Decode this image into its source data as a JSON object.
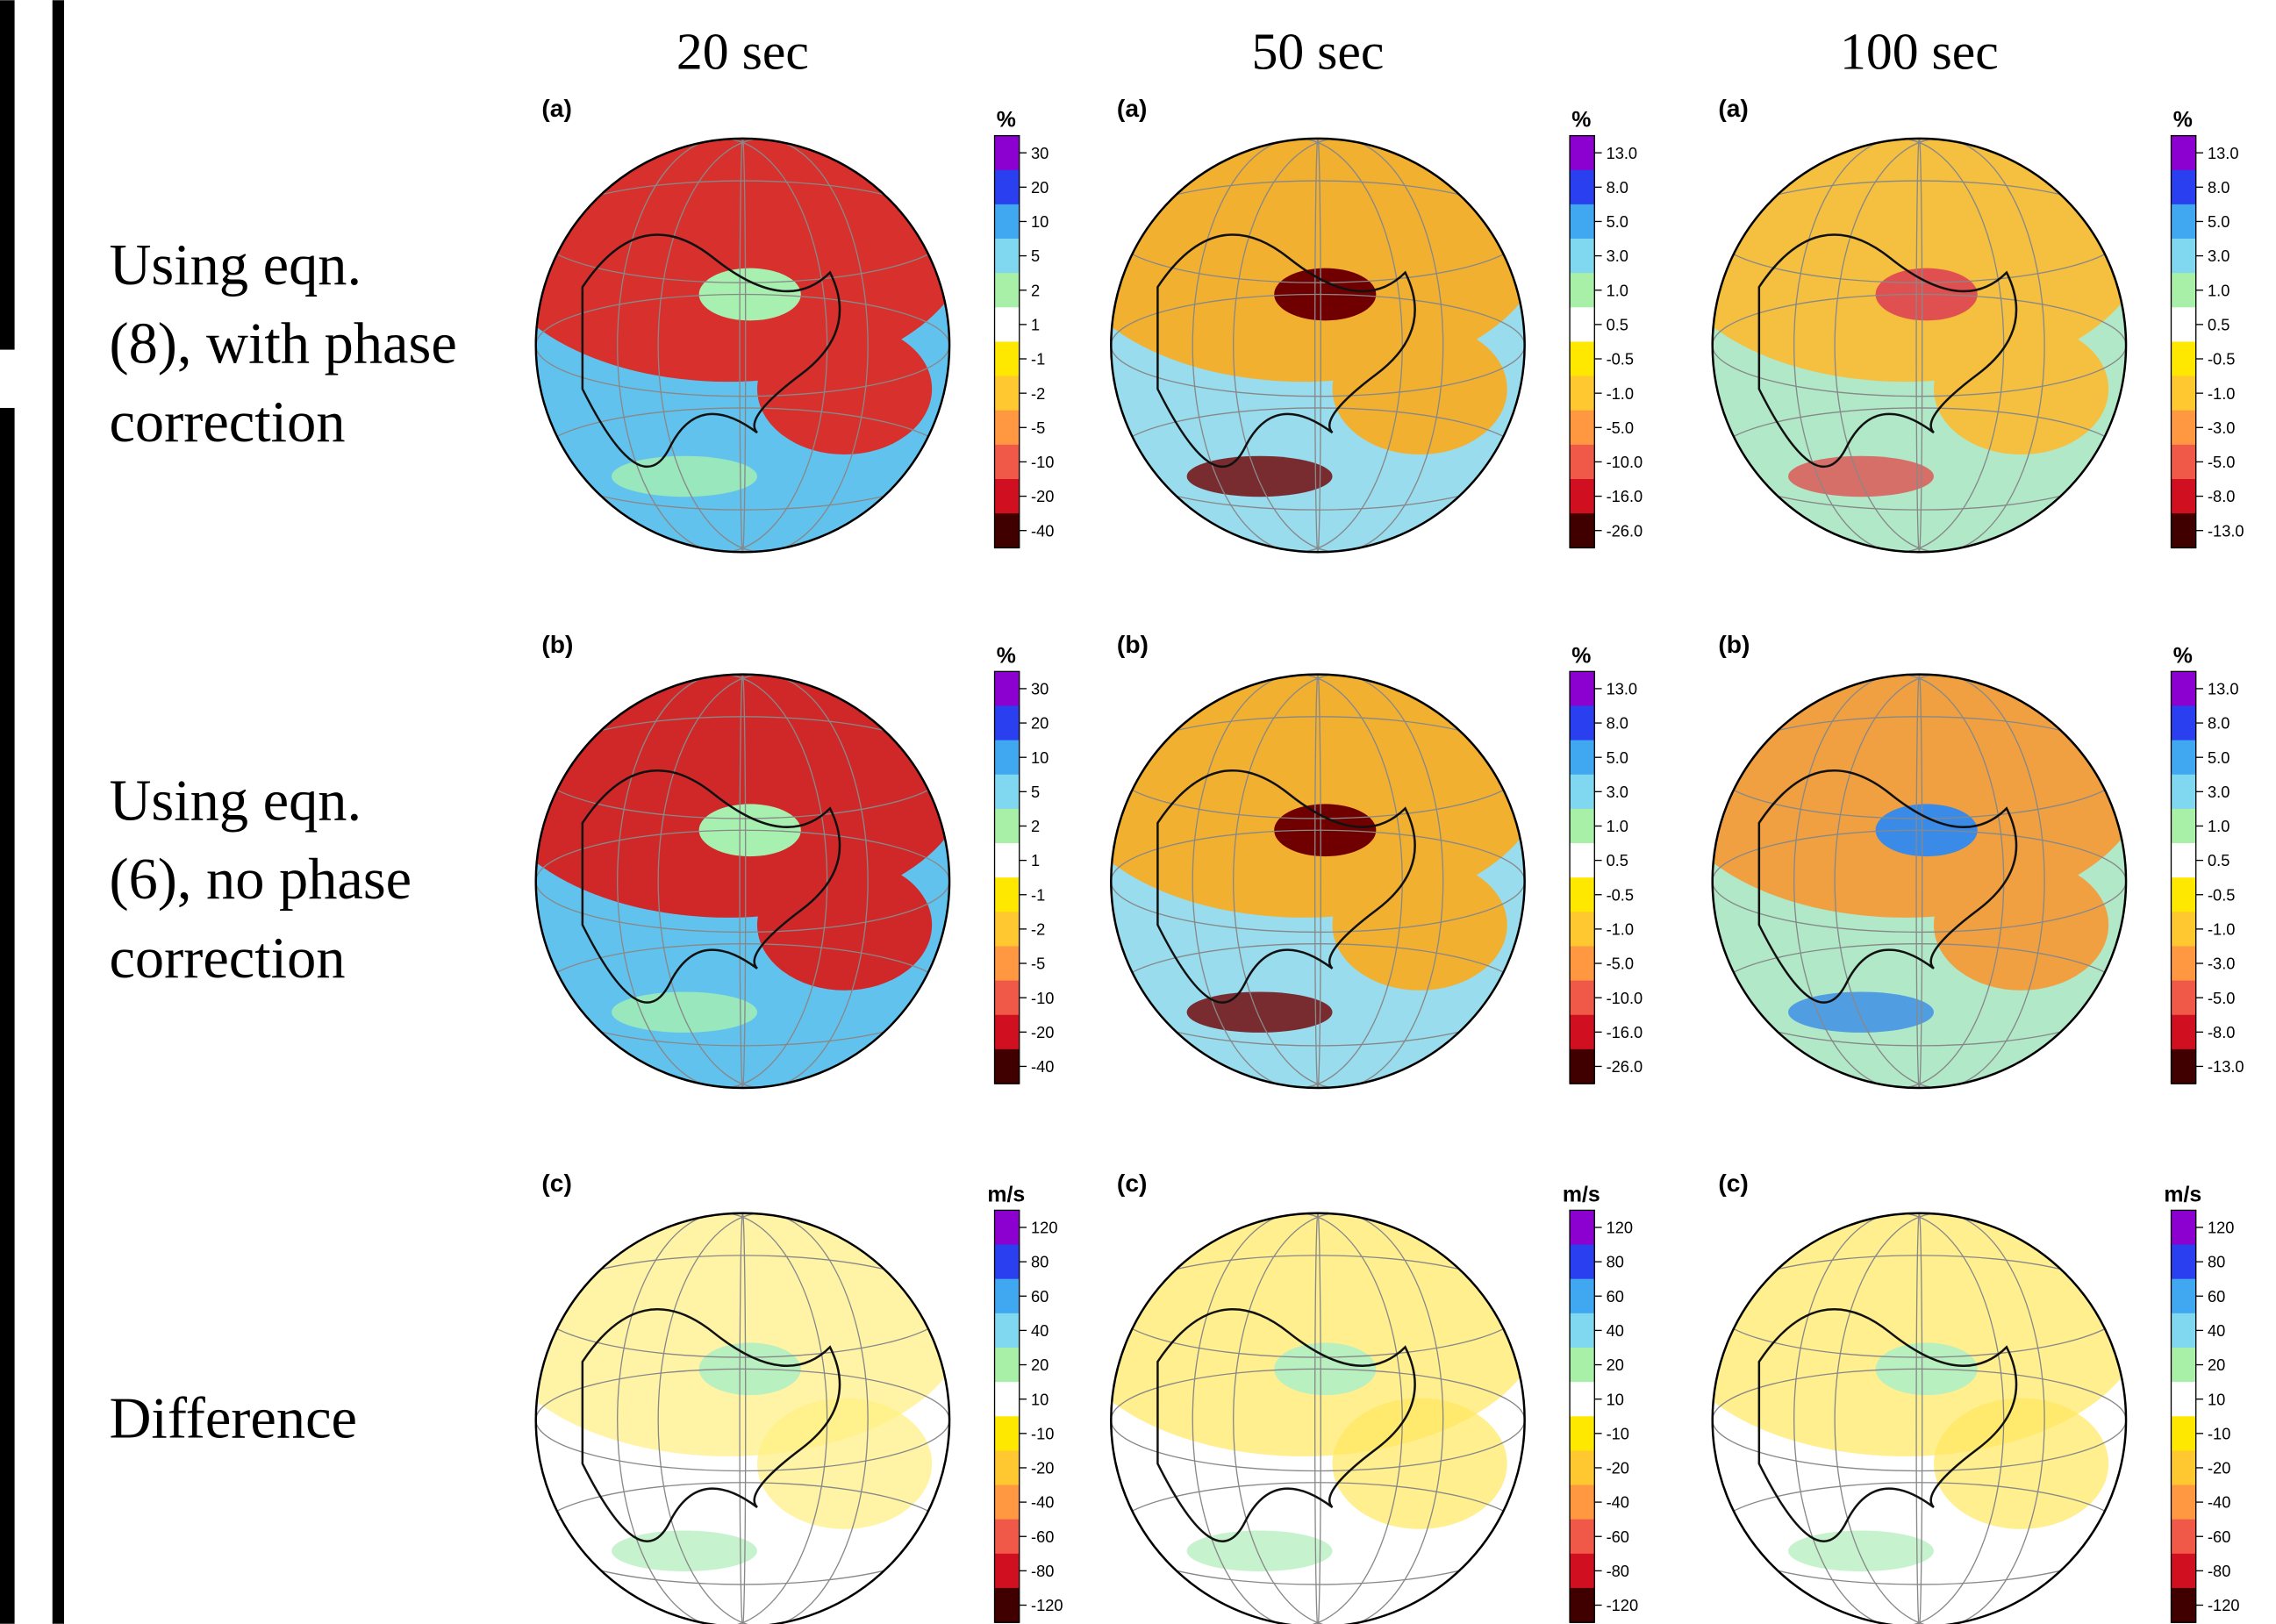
{
  "column_titles": [
    "20 sec",
    "50 sec",
    "100 sec"
  ],
  "row_labels": [
    [
      "Using eqn.",
      "(8), with  phase",
      "correction"
    ],
    [
      "Using eqn.",
      "(6), no phase",
      "correction"
    ],
    [
      "Difference"
    ]
  ],
  "panels": [
    {
      "label": "(a)",
      "unit": "%",
      "ticks": [
        "30",
        "20",
        "10",
        "5",
        "2",
        "1",
        "-1",
        "-2",
        "-5",
        "-10",
        "-20",
        "-40"
      ]
    },
    {
      "label": "(a)",
      "unit": "%",
      "ticks": [
        "13.0",
        "8.0",
        "5.0",
        "3.0",
        "1.0",
        "0.5",
        "-0.5",
        "-1.0",
        "-5.0",
        "-10.0",
        "-16.0",
        "-26.0"
      ]
    },
    {
      "label": "(a)",
      "unit": "%",
      "ticks": [
        "13.0",
        "8.0",
        "5.0",
        "3.0",
        "1.0",
        "0.5",
        "-0.5",
        "-1.0",
        "-3.0",
        "-5.0",
        "-8.0",
        "-13.0"
      ]
    },
    {
      "label": "(b)",
      "unit": "%",
      "ticks": [
        "30",
        "20",
        "10",
        "5",
        "2",
        "1",
        "-1",
        "-2",
        "-5",
        "-10",
        "-20",
        "-40"
      ]
    },
    {
      "label": "(b)",
      "unit": "%",
      "ticks": [
        "13.0",
        "8.0",
        "5.0",
        "3.0",
        "1.0",
        "0.5",
        "-0.5",
        "-1.0",
        "-5.0",
        "-10.0",
        "-16.0",
        "-26.0"
      ]
    },
    {
      "label": "(b)",
      "unit": "%",
      "ticks": [
        "13.0",
        "8.0",
        "5.0",
        "3.0",
        "1.0",
        "0.5",
        "-0.5",
        "-1.0",
        "-3.0",
        "-5.0",
        "-8.0",
        "-13.0"
      ]
    },
    {
      "label": "(c)",
      "unit": "m/s",
      "ticks": [
        "120",
        "80",
        "60",
        "40",
        "20",
        "10",
        "-10",
        "-20",
        "-40",
        "-60",
        "-80",
        "-120"
      ]
    },
    {
      "label": "(c)",
      "unit": "m/s",
      "ticks": [
        "120",
        "80",
        "60",
        "40",
        "20",
        "10",
        "-10",
        "-20",
        "-40",
        "-60",
        "-80",
        "-120"
      ]
    },
    {
      "label": "(c)",
      "unit": "m/s",
      "ticks": [
        "120",
        "80",
        "60",
        "40",
        "20",
        "10",
        "-10",
        "-20",
        "-40",
        "-60",
        "-80",
        "-120"
      ]
    }
  ]
}
